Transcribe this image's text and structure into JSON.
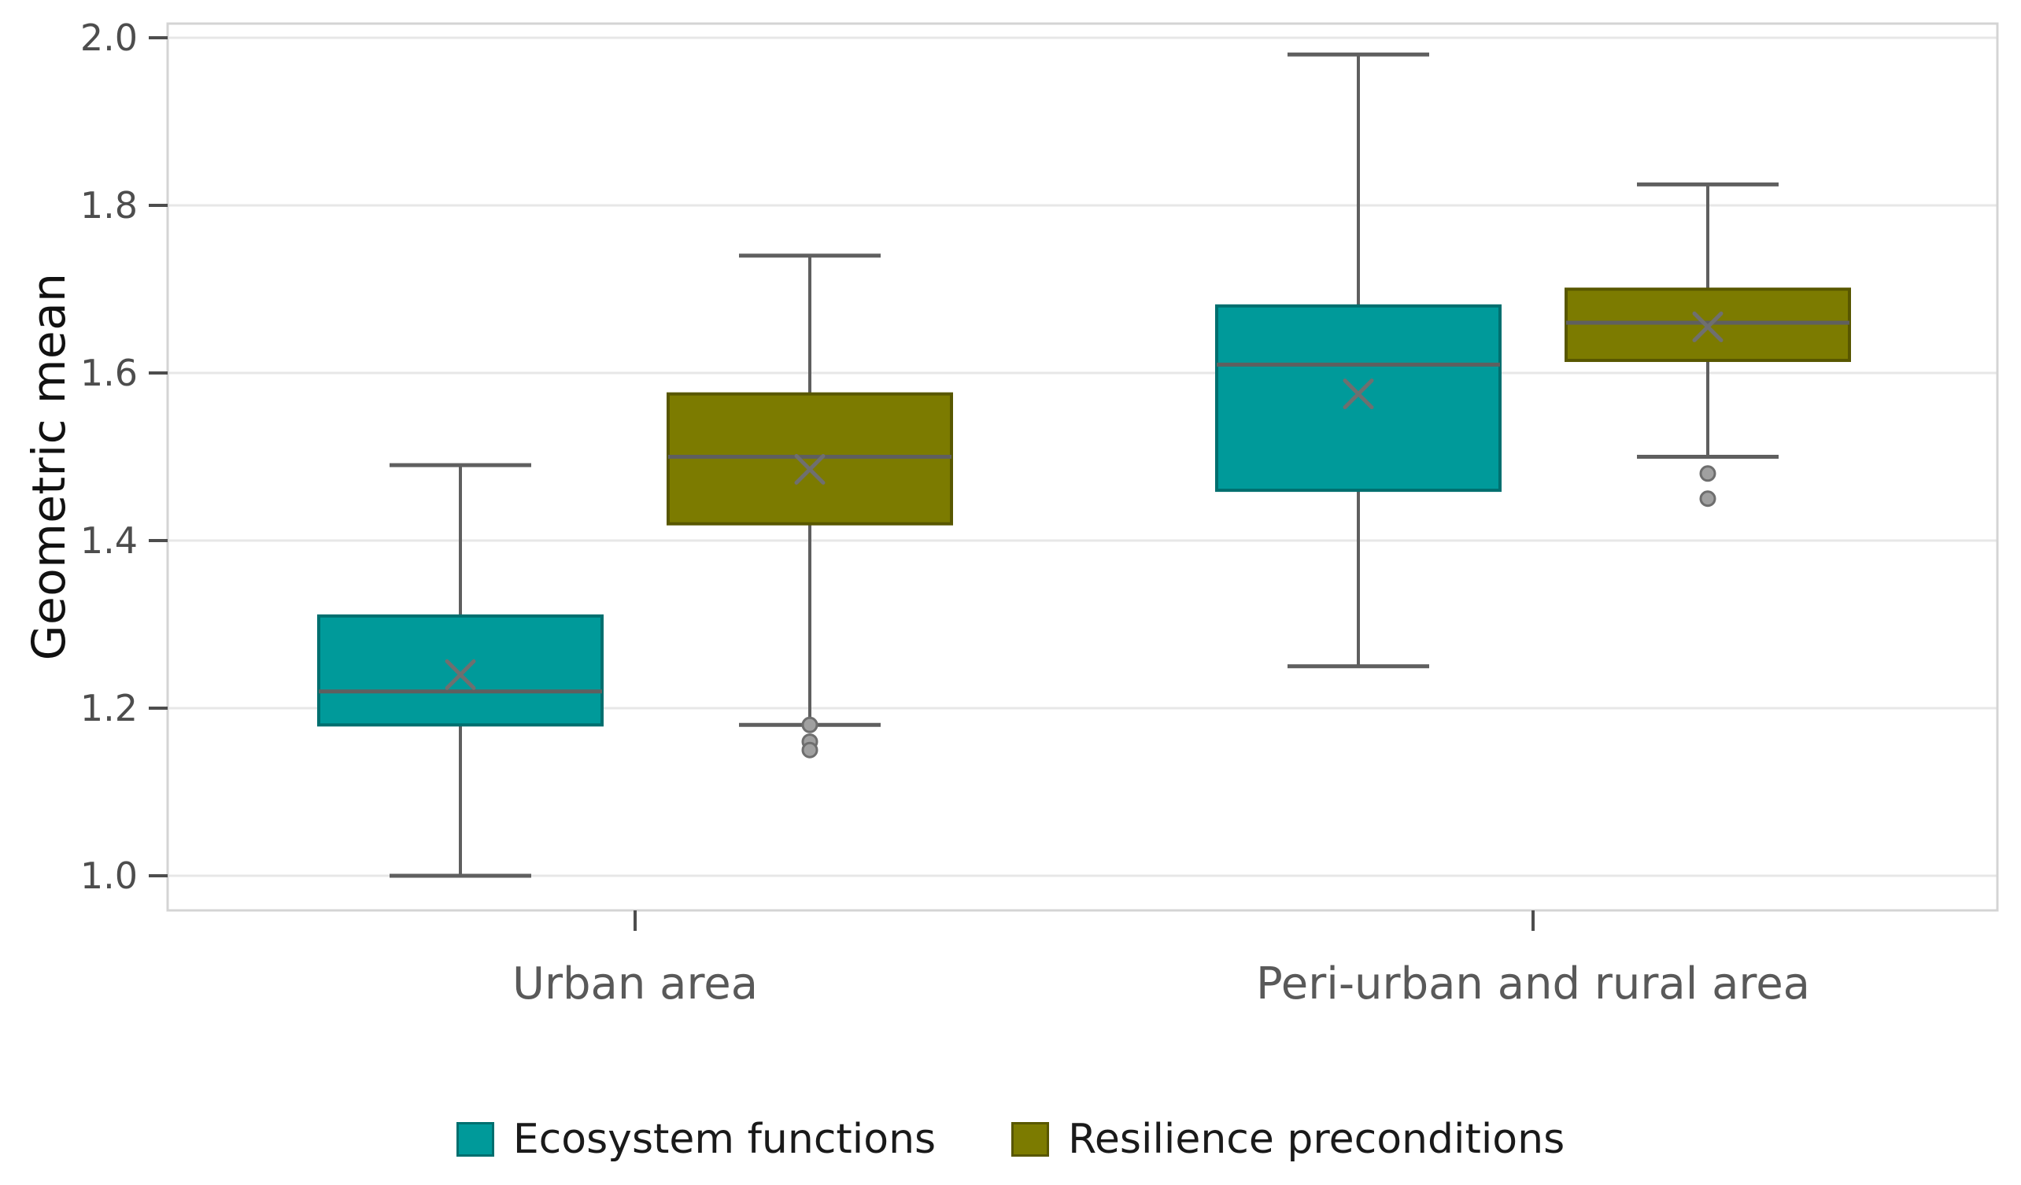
{
  "figure": {
    "background": "#ffffff"
  },
  "chart_data": {
    "type": "boxplot",
    "title": "",
    "xlabel": "",
    "ylabel": "Geometric mean",
    "ylim": [
      0.96,
      2.02
    ],
    "yticks": [
      1.0,
      1.2,
      1.4,
      1.6,
      1.8,
      2.0
    ],
    "ytick_labels": [
      "1.0",
      "1.2",
      "1.4",
      "1.6",
      "1.8",
      "2.0"
    ],
    "grid": "horizontal-only",
    "legend_position": "bottom",
    "categories": [
      "Urban area",
      "Peri-urban and rural area"
    ],
    "series": [
      {
        "name": "Ecosystem functions",
        "color": "#009A9A",
        "border_color": "#006F6F",
        "boxes": [
          {
            "category": "Urban area",
            "whisker_low": 1.0,
            "q1": 1.18,
            "median": 1.22,
            "q3": 1.31,
            "whisker_high": 1.49,
            "mean": 1.24,
            "outliers": []
          },
          {
            "category": "Peri-urban and rural area",
            "whisker_low": 1.25,
            "q1": 1.46,
            "median": 1.61,
            "q3": 1.68,
            "whisker_high": 1.98,
            "mean": 1.575,
            "outliers": []
          }
        ]
      },
      {
        "name": "Resilience preconditions",
        "color": "#7C7B00",
        "border_color": "#585700",
        "boxes": [
          {
            "category": "Urban area",
            "whisker_low": 1.18,
            "q1": 1.42,
            "median": 1.5,
            "q3": 1.575,
            "whisker_high": 1.74,
            "mean": 1.485,
            "outliers": [
              1.18,
              1.16,
              1.15
            ]
          },
          {
            "category": "Peri-urban and rural area",
            "whisker_low": 1.5,
            "q1": 1.615,
            "median": 1.66,
            "q3": 1.7,
            "whisker_high": 1.825,
            "mean": 1.655,
            "outliers": [
              1.48,
              1.45
            ]
          }
        ]
      }
    ],
    "style_colors": {
      "gridline": "#e7e7e7",
      "plot_border": "#d4d4d4",
      "whisker": "#5f5f5f",
      "median": "#5f5f5f",
      "mean_marker": "#6f6f6f",
      "outlier_fill": "#a0a0a0",
      "outlier_stroke": "#6e6e6e",
      "tick": "#4d4d4d",
      "tick_label": "#4d4d4d",
      "category_label": "#595959"
    }
  }
}
